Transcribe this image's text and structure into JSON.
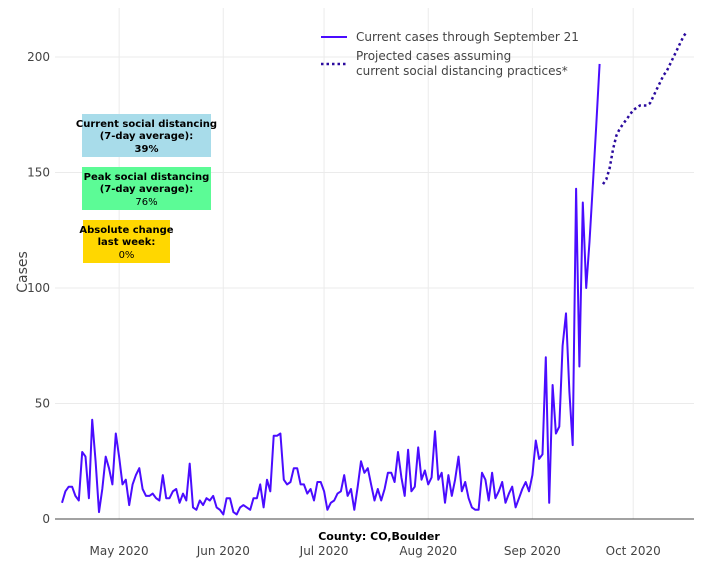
{
  "chart_data": {
    "type": "line",
    "title": "",
    "xlabel": "County: CO,Boulder",
    "ylabel": "Cases",
    "ylim": [
      0,
      221
    ],
    "y_ticks": [
      "0",
      "50",
      "100",
      "150",
      "200"
    ],
    "y_tick_values": [
      0,
      50,
      100,
      150,
      200
    ],
    "x_ticks": [
      "May 2020",
      "Jun 2020",
      "Jul 2020",
      "Aug 2020",
      "Sep 2020",
      "Oct 2020"
    ],
    "x_tick_days": [
      17,
      48,
      78,
      109,
      140,
      170
    ],
    "x_start": "2020-04-14",
    "x_range_days": [
      -1,
      190
    ],
    "grid": true,
    "legend_position": "top-right",
    "series": [
      {
        "name": "Current cases through September 21",
        "style": "solid",
        "color": "#4a0cff",
        "start_day": 0,
        "values": [
          7,
          12,
          14,
          14,
          10,
          8,
          29,
          27,
          9,
          43,
          25,
          3,
          13,
          27,
          22,
          15,
          37,
          27,
          15,
          17,
          6,
          15,
          19,
          22,
          13,
          10,
          10,
          11,
          9,
          8,
          19,
          9,
          9,
          12,
          13,
          7,
          11,
          8,
          24,
          5,
          4,
          8,
          6,
          9,
          8,
          10,
          5,
          4,
          2,
          9,
          9,
          3,
          2,
          5,
          6,
          5,
          4,
          9,
          9,
          15,
          5,
          17,
          12,
          36,
          36,
          37,
          17,
          15,
          16,
          22,
          22,
          15,
          15,
          11,
          13,
          8,
          16,
          16,
          12,
          4,
          7,
          8,
          11,
          12,
          19,
          10,
          13,
          4,
          14,
          25,
          20,
          22,
          15,
          8,
          13,
          8,
          13,
          20,
          20,
          16,
          29,
          18,
          10,
          30,
          12,
          14,
          31,
          17,
          21,
          15,
          18,
          38,
          17,
          20,
          7,
          19,
          10,
          17,
          27,
          12,
          16,
          9,
          5,
          4,
          4,
          20,
          17,
          8,
          20,
          9,
          12,
          16,
          7,
          11,
          14,
          5,
          9,
          13,
          16,
          12,
          19,
          34,
          26,
          28,
          70,
          7,
          58,
          37,
          40,
          75,
          89,
          55,
          32,
          143,
          66,
          137,
          100,
          120,
          145,
          170,
          197
        ]
      },
      {
        "name": "Projected cases assuming current social distancing practices*",
        "legend_lines": [
          "Projected cases assuming",
          "current social distancing practices*"
        ],
        "style": "dotted",
        "color": "#2a0a9e",
        "start_day": 161,
        "values": [
          145,
          147,
          152,
          160,
          166,
          169,
          171,
          173,
          175,
          177,
          178,
          179,
          179,
          179,
          180,
          183,
          186,
          189,
          192,
          194,
          197,
          200,
          203,
          206,
          209,
          211
        ]
      }
    ],
    "annotations": [
      {
        "lines": [
          "Current social distancing",
          "(7-day average):",
          "39%"
        ],
        "color": "#a8dcea"
      },
      {
        "lines": [
          "Peak social distancing",
          "(7-day average):",
          "76%"
        ],
        "color": "#5cfb96"
      },
      {
        "lines": [
          "Absolute change",
          "last week:",
          "0%"
        ],
        "color": "#ffd700"
      }
    ]
  }
}
